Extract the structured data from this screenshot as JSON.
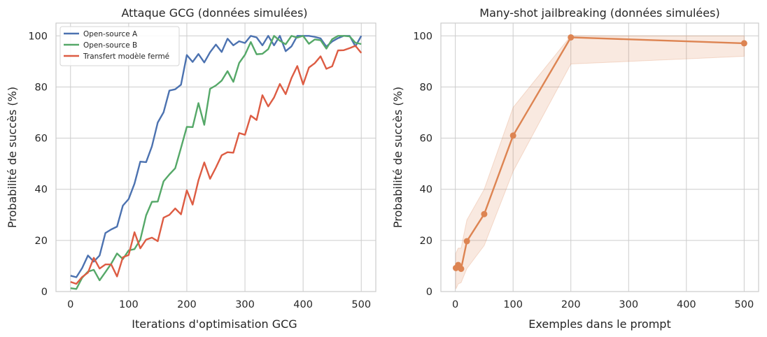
{
  "chart_data": [
    {
      "type": "line",
      "title": "Attaque GCG (données simulées)",
      "xlabel": "Iterations d'optimisation GCG",
      "ylabel": "Probabilité de succès (%)",
      "xlim": [
        -25,
        525
      ],
      "ylim": [
        0,
        105
      ],
      "xticks": [
        0,
        100,
        200,
        300,
        400,
        500
      ],
      "yticks": [
        0,
        20,
        40,
        60,
        80,
        100
      ],
      "grid": true,
      "legend_position": "top-left",
      "x": [
        0,
        10,
        20,
        30,
        40,
        50,
        60,
        70,
        80,
        90,
        100,
        110,
        120,
        130,
        140,
        150,
        160,
        170,
        180,
        190,
        200,
        210,
        220,
        230,
        240,
        250,
        260,
        270,
        280,
        290,
        300,
        310,
        320,
        330,
        340,
        350,
        360,
        370,
        380,
        390,
        400,
        410,
        420,
        430,
        440,
        450,
        460,
        470,
        480,
        490,
        500
      ],
      "series": [
        {
          "name": "Open-source A",
          "color": "#4c72b0",
          "values": [
            6.2,
            5.6,
            9.2,
            14.1,
            11.7,
            14.1,
            22.9,
            24.3,
            25.4,
            33.6,
            36.2,
            42.2,
            50.8,
            50.6,
            56.8,
            66.1,
            70.1,
            78.6,
            79.1,
            80.9,
            92.5,
            89.8,
            92.9,
            89.6,
            93.6,
            96.6,
            93.7,
            98.9,
            96.3,
            97.9,
            97.2,
            100,
            99.4,
            96.3,
            100,
            96.3,
            100,
            94,
            95.9,
            100,
            100,
            100,
            99.6,
            99,
            95.8,
            97.8,
            99.1,
            100,
            100,
            95.9,
            100
          ]
        },
        {
          "name": "Open-source B",
          "color": "#55a868",
          "values": [
            1.3,
            1,
            5.4,
            7.8,
            8.5,
            4.4,
            7.6,
            10.9,
            14.9,
            12.7,
            16.1,
            16.6,
            20.3,
            29.8,
            35.1,
            35.2,
            43.1,
            45.8,
            48.2,
            56.2,
            64.4,
            64.3,
            73.7,
            65.2,
            79.3,
            80.6,
            82.5,
            86.2,
            82,
            89.4,
            92.6,
            97.6,
            92.8,
            93,
            94.8,
            100,
            98.1,
            96.7,
            100,
            99.3,
            100,
            96.9,
            98.6,
            98.3,
            95,
            98.7,
            100,
            100,
            99.8,
            97.3,
            96.8
          ]
        },
        {
          "name": "Transfert modèle fermé",
          "color": "#dd5c43",
          "values": [
            3.8,
            3,
            5.7,
            7.4,
            13.2,
            9,
            10.6,
            10.6,
            5.9,
            13.4,
            14.3,
            23.2,
            16.9,
            20.3,
            21.1,
            19.7,
            28.9,
            30,
            32.5,
            30.2,
            39.6,
            34,
            43.5,
            50.5,
            44.1,
            48.5,
            53.3,
            54.5,
            54.3,
            62,
            61.3,
            68.8,
            67.1,
            76.8,
            72.4,
            75.9,
            81.2,
            77.2,
            83.5,
            88.2,
            81,
            87.6,
            89.3,
            92,
            87.1,
            88.1,
            94.3,
            94.4,
            95.2,
            96.1,
            93.3
          ]
        }
      ]
    },
    {
      "type": "line",
      "title": "Many-shot jailbreaking (données simulées)",
      "xlabel": "Exemples dans le prompt",
      "ylabel": "Probabilité de succès (%)",
      "xlim": [
        -25,
        525
      ],
      "ylim": [
        0,
        105
      ],
      "xticks": [
        0,
        100,
        200,
        300,
        400,
        500
      ],
      "yticks": [
        0,
        20,
        40,
        60,
        80,
        100
      ],
      "grid": true,
      "x": [
        1,
        5,
        10,
        20,
        50,
        100,
        200,
        500
      ],
      "series": [
        {
          "color": "#dd8452",
          "values": [
            9.2,
            10.4,
            8.9,
            19.7,
            30.3,
            61,
            99.4,
            97.1
          ],
          "band_low": [
            1,
            3,
            3.5,
            9,
            18,
            47,
            89,
            92
          ],
          "band_high": [
            15,
            17,
            17,
            28,
            40,
            72,
            100,
            100
          ]
        }
      ]
    }
  ]
}
